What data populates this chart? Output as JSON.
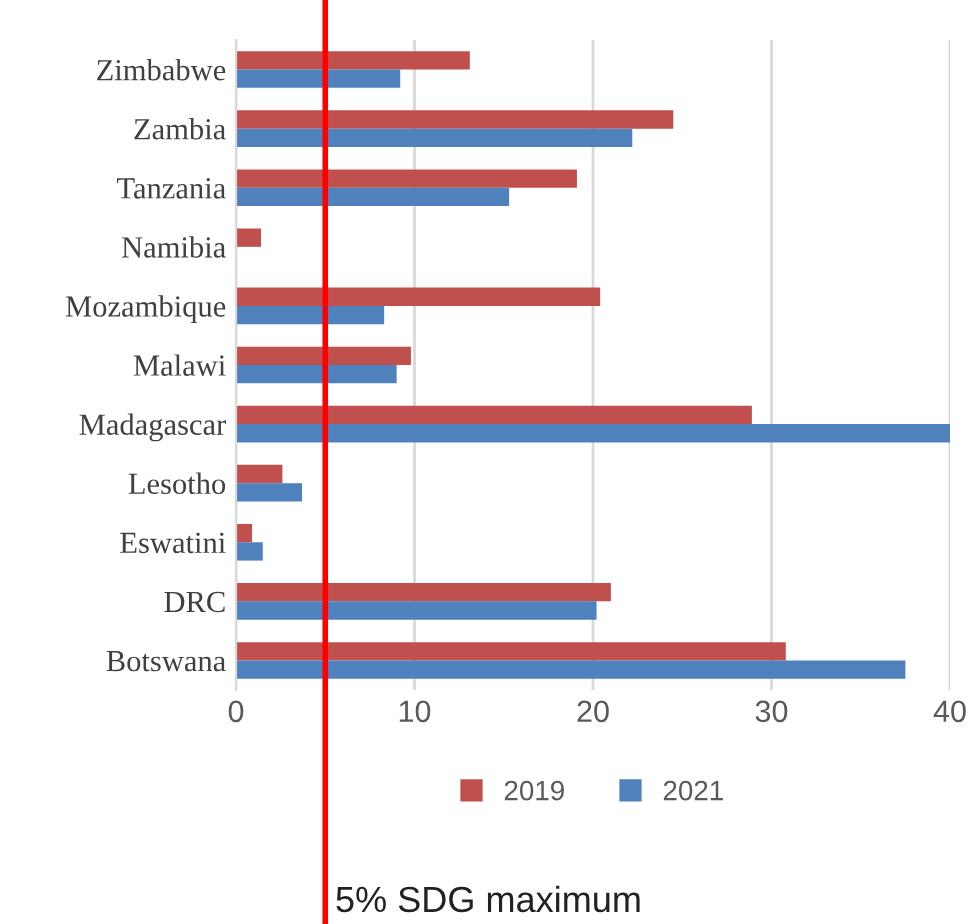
{
  "chart_data": {
    "type": "bar",
    "orientation": "horizontal",
    "categories": [
      "Zimbabwe",
      "Zambia",
      "Tanzania",
      "Namibia",
      "Mozambique",
      "Malawi",
      "Madagascar",
      "Lesotho",
      "Eswatini",
      "DRC",
      "Botswana"
    ],
    "series": [
      {
        "name": "2019",
        "color": "#c0504d",
        "values": [
          13.1,
          24.5,
          19.1,
          1.4,
          20.4,
          9.8,
          28.9,
          2.6,
          0.9,
          21.0,
          30.8
        ]
      },
      {
        "name": "2021",
        "color": "#4f81bd",
        "values": [
          9.2,
          22.2,
          15.3,
          null,
          8.3,
          9.0,
          40.0,
          3.7,
          1.5,
          20.2,
          37.5
        ]
      }
    ],
    "xlim": [
      0,
      40
    ],
    "xticks": [
      0,
      10,
      20,
      30,
      40
    ],
    "grid": "x",
    "legend": "bottom",
    "ref_lines": [
      {
        "axis": "x",
        "value": 5,
        "label": "5% SDG maximum",
        "color": "#ff0000"
      }
    ]
  }
}
